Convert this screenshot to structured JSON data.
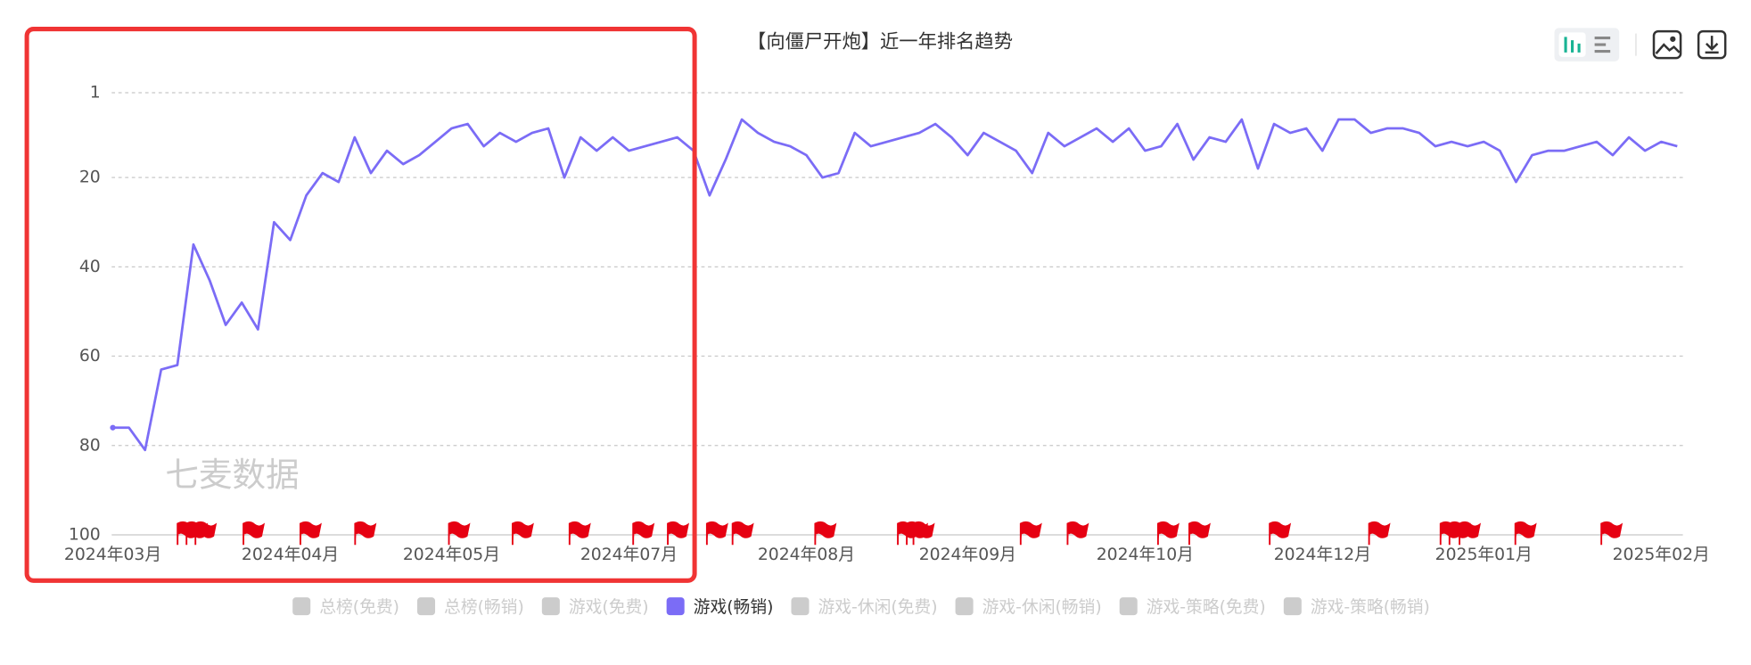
{
  "chart_data": {
    "type": "line",
    "title": "【向僵尸开炮】近一年排名趋势",
    "watermark": "七麦数据",
    "categories": [
      "2024年03月",
      null,
      null,
      null,
      null,
      null,
      null,
      null,
      null,
      null,
      null,
      "2024年04月",
      null,
      null,
      null,
      null,
      null,
      null,
      null,
      null,
      null,
      "2024年05月",
      null,
      null,
      null,
      null,
      null,
      null,
      null,
      null,
      null,
      null,
      "2024年07月",
      null,
      null,
      null,
      null,
      null,
      null,
      null,
      null,
      null,
      null,
      "2024年08月",
      null,
      null,
      null,
      null,
      null,
      null,
      null,
      null,
      null,
      "2024年09月",
      null,
      null,
      null,
      null,
      null,
      null,
      null,
      null,
      null,
      null,
      "2024年10月",
      null,
      null,
      null,
      null,
      null,
      null,
      null,
      null,
      null,
      null,
      "2024年12月",
      null,
      null,
      null,
      null,
      null,
      null,
      null,
      null,
      null,
      "2025年01月",
      null,
      null,
      null,
      null,
      null,
      null,
      null,
      null,
      null,
      null,
      "2025年02月",
      null
    ],
    "series": [
      {
        "name": "总榜(免费)",
        "visible": false
      },
      {
        "name": "总榜(畅销)",
        "visible": false
      },
      {
        "name": "游戏(免费)",
        "visible": false
      },
      {
        "name": "游戏(畅销)",
        "visible": true,
        "color": "#7b6cf6",
        "values": [
          76,
          76,
          81,
          63,
          62,
          35,
          43,
          53,
          48,
          54,
          30,
          34,
          24,
          19,
          21,
          11,
          19,
          14,
          17,
          15,
          12,
          9,
          8,
          13,
          10,
          12,
          10,
          9,
          20,
          11,
          14,
          11,
          14,
          13,
          12,
          11,
          14,
          24,
          16,
          7,
          10,
          12,
          13,
          15,
          20,
          19,
          10,
          13,
          12,
          11,
          10,
          8,
          11,
          15,
          10,
          12,
          14,
          19,
          10,
          13,
          11,
          9,
          12,
          9,
          14,
          13,
          8,
          16,
          11,
          12,
          7,
          18,
          8,
          10,
          9,
          14,
          7,
          7,
          10,
          9,
          9,
          10,
          13,
          12,
          13,
          12,
          14,
          21,
          15,
          14,
          14,
          13,
          12,
          15,
          11,
          14,
          12,
          13
        ]
      },
      {
        "name": "游戏-休闲(免费)",
        "visible": false
      },
      {
        "name": "游戏-休闲(畅销)",
        "visible": false
      },
      {
        "name": "游戏-策略(免费)",
        "visible": false
      },
      {
        "name": "游戏-策略(畅销)",
        "visible": false
      }
    ],
    "ylim": [
      100,
      1
    ],
    "yticks": [
      1,
      20,
      40,
      60,
      80,
      100
    ],
    "grid": true
  }
}
